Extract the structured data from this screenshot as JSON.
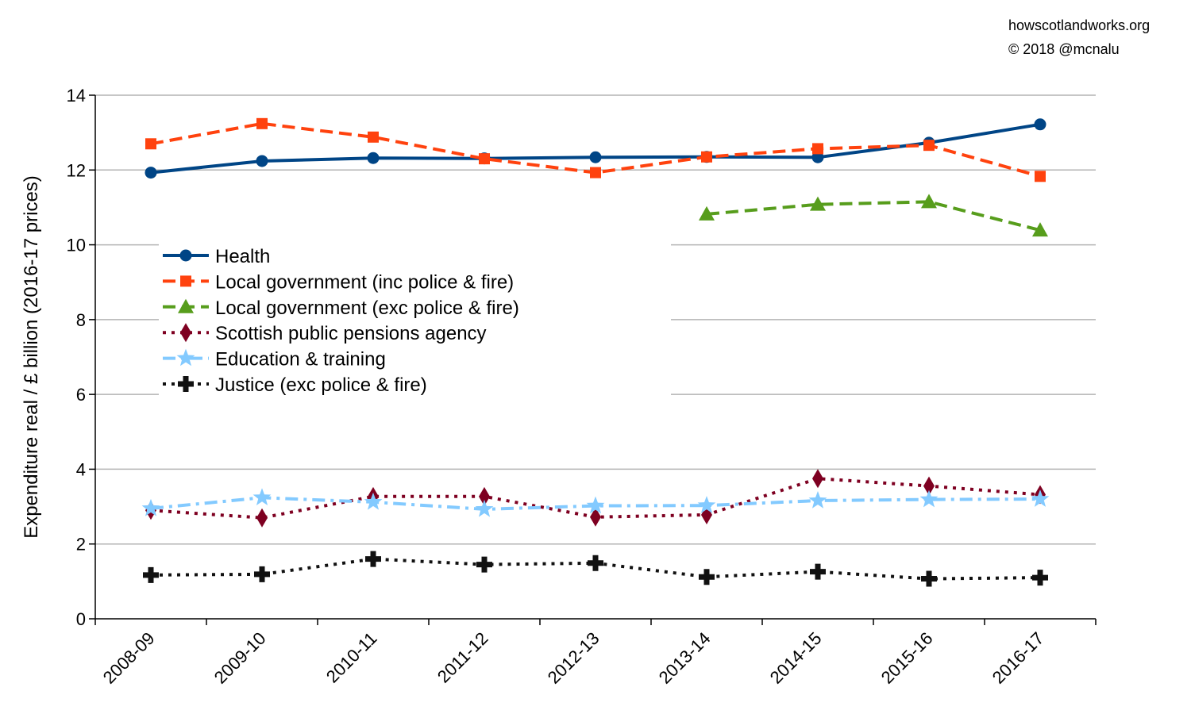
{
  "credits": {
    "site": "howscotlandworks.org",
    "copyright": "© 2018  @mcnalu"
  },
  "chart_data": {
    "type": "line",
    "title": "",
    "xlabel": "",
    "ylabel": "Expenditure real / £ billion (2016-17 prices)",
    "ylim": [
      0,
      14
    ],
    "yticks": [
      0,
      2,
      4,
      6,
      8,
      10,
      12,
      14
    ],
    "grid": true,
    "legend_position": "upper-left inside",
    "categories": [
      "2008-09",
      "2009-10",
      "2010-11",
      "2011-12",
      "2012-13",
      "2013-14",
      "2014-15",
      "2015-16",
      "2016-17"
    ],
    "series": [
      {
        "name": "Health",
        "color": "#004586",
        "dash": "solid",
        "marker": "circle",
        "values": [
          11.93,
          12.24,
          12.32,
          12.31,
          12.34,
          12.35,
          12.34,
          12.73,
          13.22
        ]
      },
      {
        "name": "Local government (inc police & fire)",
        "color": "#ff420e",
        "dash": "dashed",
        "marker": "square",
        "values": [
          12.7,
          13.24,
          12.88,
          12.3,
          11.93,
          12.35,
          12.57,
          12.66,
          11.83
        ]
      },
      {
        "name": "Local government (exc police & fire)",
        "color": "#579d1c",
        "dash": "dashed",
        "marker": "triangle",
        "values": [
          null,
          null,
          null,
          null,
          null,
          10.82,
          11.08,
          11.15,
          10.39
        ]
      },
      {
        "name": "Scottish public pensions agency",
        "color": "#7e0021",
        "dash": "dotted",
        "marker": "diamond",
        "values": [
          2.9,
          2.7,
          3.27,
          3.27,
          2.72,
          2.78,
          3.75,
          3.55,
          3.32
        ]
      },
      {
        "name": "Education & training",
        "color": "#83caff",
        "dash": "dashdot",
        "marker": "star",
        "values": [
          2.95,
          3.24,
          3.12,
          2.93,
          3.02,
          3.03,
          3.16,
          3.19,
          3.2
        ]
      },
      {
        "name": "Justice (exc police & fire)",
        "color": "#111111",
        "dash": "dotted",
        "marker": "cross",
        "values": [
          1.17,
          1.19,
          1.6,
          1.45,
          1.49,
          1.12,
          1.26,
          1.07,
          1.1
        ]
      }
    ]
  }
}
